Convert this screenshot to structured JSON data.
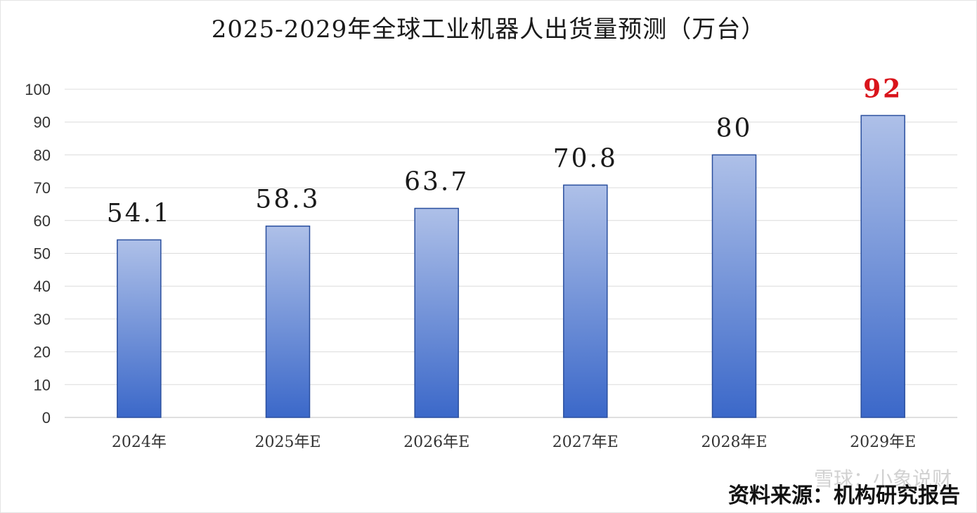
{
  "chart_data": {
    "type": "bar",
    "title": "2025-2029年全球工业机器人出货量预测（万台）",
    "categories": [
      "2024年",
      "2025年E",
      "2026年E",
      "2027年E",
      "2028年E",
      "2029年E"
    ],
    "values": [
      54.1,
      58.3,
      63.7,
      70.8,
      80,
      92
    ],
    "value_labels": [
      "54.1",
      "58.3",
      "63.7",
      "70.8",
      "80",
      "92"
    ],
    "highlight_index": 5,
    "ylim": [
      0,
      100
    ],
    "yticks": [
      "0",
      "10",
      "20",
      "30",
      "40",
      "50",
      "60",
      "70",
      "80",
      "90",
      "100"
    ],
    "grid": true,
    "legend": "none",
    "xlabel": "",
    "ylabel": ""
  },
  "colors": {
    "bar_top": "#aec0e8",
    "bar_bottom": "#3b68c9",
    "bar_stroke": "#2a4f9e",
    "grid": "#dcdcdc",
    "label": "#1a1a1a",
    "highlight_label": "#d9141b"
  },
  "watermark": "雪球：小象说财",
  "source": "资料来源：机构研究报告"
}
